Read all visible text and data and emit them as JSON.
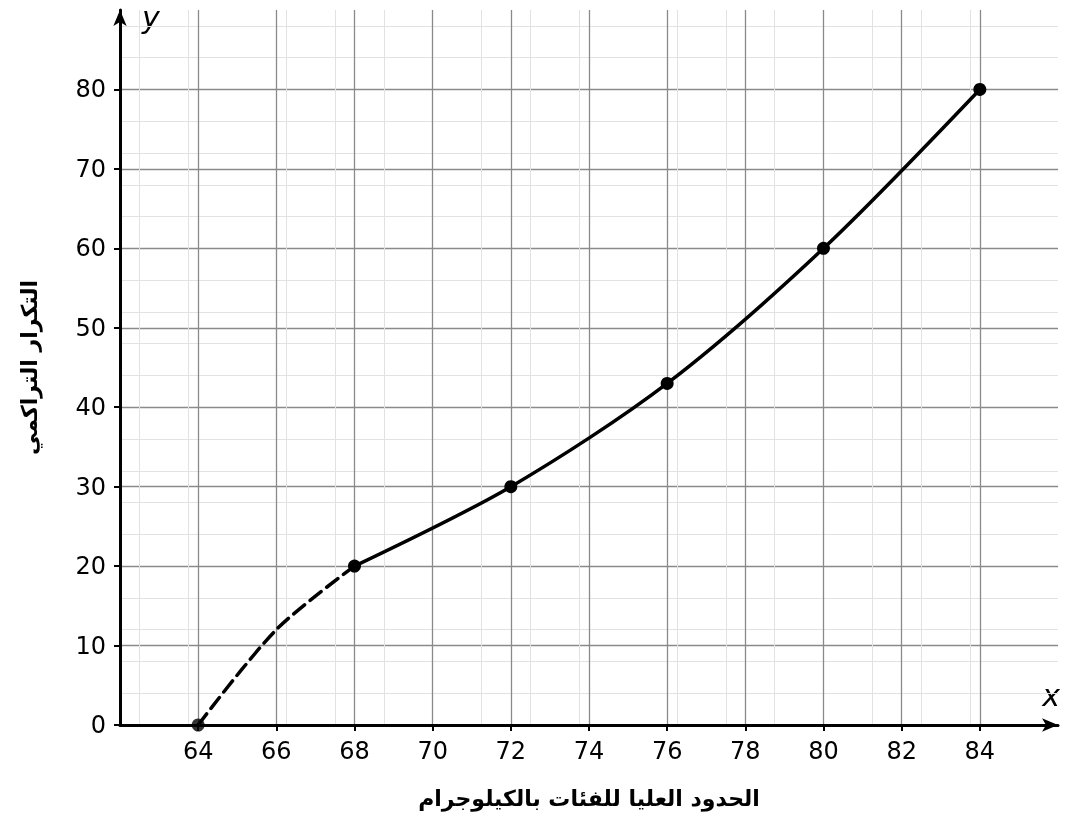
{
  "chart_data": {
    "type": "line",
    "xlabel": "الحدود العليا للفئات بالكيلوجرام",
    "ylabel": "التكرار التراكمي",
    "annotations": [
      "x",
      "y"
    ],
    "series": [
      {
        "x": [
          64,
          66,
          68
        ],
        "values": [
          0,
          12,
          20
        ],
        "color": "#000000",
        "line_style": "dashed",
        "marker": "none"
      },
      {
        "x": [
          68,
          72,
          76,
          80,
          84
        ],
        "values": [
          20,
          30,
          43,
          60,
          80
        ],
        "color": "#000000",
        "line_style": "solid",
        "marker": "circle"
      },
      {
        "type": "scatter",
        "x": [
          64
        ],
        "values": [
          0
        ],
        "color": "#000000",
        "marker": "circle"
      }
    ],
    "xlim": [
      62,
      86
    ],
    "xticks": [
      64,
      66,
      68,
      70,
      72,
      74,
      76,
      78,
      80,
      82,
      84
    ],
    "ylim": [
      0,
      90
    ],
    "yticks": [
      0,
      10,
      20,
      30,
      40,
      50,
      60,
      70,
      80
    ],
    "grid": true
  }
}
